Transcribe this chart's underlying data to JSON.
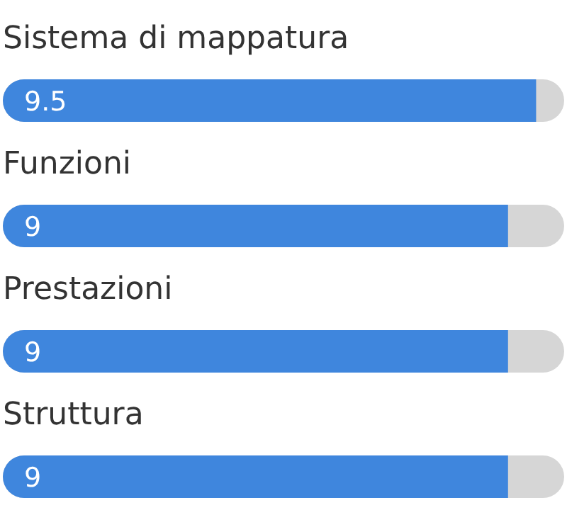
{
  "chart_data": {
    "type": "bar",
    "orientation": "horizontal",
    "categories": [
      "Sistema di mappatura",
      "Funzioni",
      "Prestazioni",
      "Struttura"
    ],
    "values": [
      9.5,
      9,
      9,
      9
    ],
    "color": "#3f86dd",
    "xlim": [
      0,
      10
    ],
    "data_labels": true
  }
}
